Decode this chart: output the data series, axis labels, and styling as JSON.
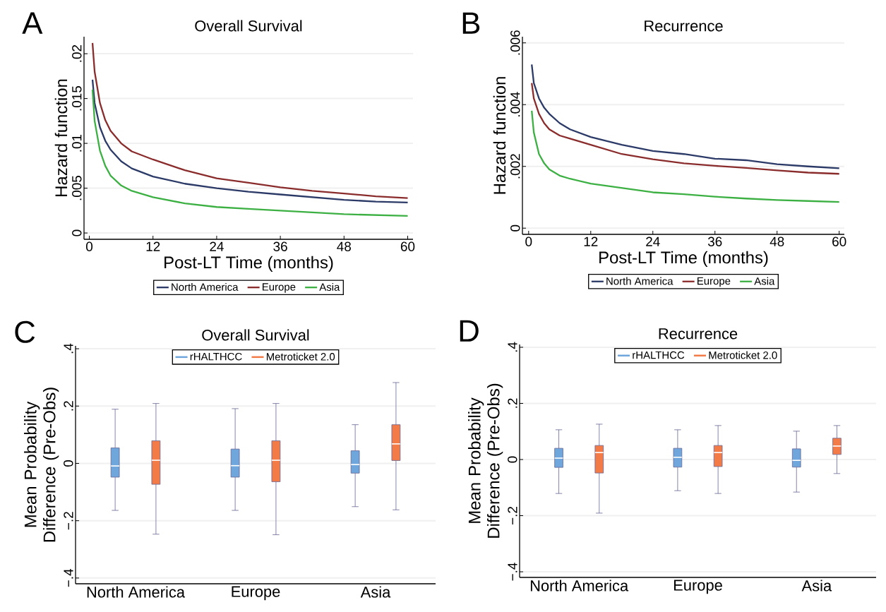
{
  "chart_data": [
    {
      "type": "line",
      "title": "Overall Survival",
      "xlabel": "Post-LT Time (months)",
      "ylabel": "Hazard function",
      "annotations": [
        "A"
      ],
      "x": [
        0.6,
        1,
        2,
        3,
        4,
        6,
        8,
        12,
        18,
        24,
        30,
        36,
        42,
        48,
        54,
        60
      ],
      "series": [
        {
          "name": "North America",
          "color": "#2b3a67",
          "values": [
            0.0171,
            0.0145,
            0.0118,
            0.0103,
            0.0093,
            0.008,
            0.0072,
            0.0063,
            0.0055,
            0.005,
            0.0046,
            0.0043,
            0.004,
            0.0037,
            0.0035,
            0.0034
          ]
        },
        {
          "name": "Europe",
          "color": "#8b2c2c",
          "values": [
            0.0212,
            0.018,
            0.0145,
            0.0126,
            0.0114,
            0.01,
            0.0091,
            0.0082,
            0.007,
            0.0061,
            0.0056,
            0.0051,
            0.0047,
            0.0044,
            0.0041,
            0.0039
          ]
        },
        {
          "name": "Asia",
          "color": "#3cb043",
          "values": [
            0.016,
            0.0125,
            0.0092,
            0.0075,
            0.0064,
            0.0053,
            0.0047,
            0.004,
            0.0033,
            0.0029,
            0.0027,
            0.0025,
            0.0023,
            0.0021,
            0.002,
            0.0019
          ]
        }
      ],
      "xlim": [
        -1,
        61
      ],
      "ylim": [
        -0.0007,
        0.0219
      ],
      "xticks": [
        0,
        12,
        24,
        36,
        48,
        60
      ],
      "yticks": [
        0,
        {
          "value": 0.005,
          "label": ".005"
        },
        {
          "value": 0.01,
          "label": ".01"
        },
        {
          "value": 0.015,
          "label": ".015"
        },
        {
          "value": 0.02,
          "label": ".02"
        }
      ],
      "grid": "y",
      "legend": "bottom"
    },
    {
      "type": "line",
      "title": "Recurrence",
      "xlabel": "Post-LT Time (months)",
      "ylabel": "Hazard function",
      "annotations": [
        "B"
      ],
      "x": [
        0.6,
        1,
        2,
        3,
        4,
        6,
        8,
        12,
        18,
        24,
        30,
        36,
        42,
        48,
        54,
        60
      ],
      "series": [
        {
          "name": "North America",
          "color": "#2b3a67",
          "values": [
            0.0053,
            0.0047,
            0.0042,
            0.0039,
            0.0037,
            0.0034,
            0.0032,
            0.00295,
            0.0027,
            0.0025,
            0.0024,
            0.00225,
            0.0022,
            0.00207,
            0.002,
            0.00194
          ]
        },
        {
          "name": "Europe",
          "color": "#8b2c2c",
          "values": [
            0.0047,
            0.0042,
            0.0037,
            0.0034,
            0.0032,
            0.003,
            0.0029,
            0.0027,
            0.0024,
            0.00223,
            0.0021,
            0.00202,
            0.00195,
            0.00187,
            0.0018,
            0.00176
          ]
        },
        {
          "name": "Asia",
          "color": "#3cb043",
          "values": [
            0.0038,
            0.0031,
            0.0024,
            0.0021,
            0.0019,
            0.0017,
            0.0016,
            0.00144,
            0.0013,
            0.00116,
            0.0011,
            0.00102,
            0.00096,
            0.00091,
            0.00088,
            0.00085
          ]
        }
      ],
      "xlim": [
        -1.2,
        61
      ],
      "ylim": [
        -0.0002,
        0.0062
      ],
      "xticks": [
        0,
        12,
        24,
        36,
        48,
        60
      ],
      "yticks": [
        0,
        {
          "value": 0.002,
          "label": ".002"
        },
        {
          "value": 0.004,
          "label": ".004"
        },
        {
          "value": 0.006,
          "label": ".006"
        }
      ],
      "grid": "y",
      "legend": "bottom"
    },
    {
      "type": "box",
      "title": "Overall Survival",
      "ylabel": "Mean Probability Difference (Pre-Obs)",
      "annotations": [
        "C"
      ],
      "categories": [
        "North America",
        "Europe",
        "Asia"
      ],
      "series": [
        {
          "name": "rHALTHCC",
          "color": "#6fa6dc",
          "boxes": [
            {
              "low": -0.164,
              "q1": -0.048,
              "median": -0.009,
              "q3": 0.054,
              "high": 0.189
            },
            {
              "low": -0.164,
              "q1": -0.048,
              "median": -0.008,
              "q3": 0.05,
              "high": 0.191
            },
            {
              "low": -0.151,
              "q1": -0.034,
              "median": -0.004,
              "q3": 0.044,
              "high": 0.135
            }
          ]
        },
        {
          "name": "Metroticket 2.0",
          "color": "#f37b48",
          "boxes": [
            {
              "low": -0.247,
              "q1": -0.073,
              "median": 0.011,
              "q3": 0.079,
              "high": 0.209
            },
            {
              "low": -0.249,
              "q1": -0.064,
              "median": 0.011,
              "q3": 0.079,
              "high": 0.209
            },
            {
              "low": -0.162,
              "q1": 0.01,
              "median": 0.068,
              "q3": 0.135,
              "high": 0.282
            }
          ]
        }
      ],
      "ylim": [
        -0.42,
        0.41
      ],
      "yticks": [
        {
          "value": -0.4,
          "label": "−.4"
        },
        {
          "value": -0.2,
          "label": "−.2"
        },
        0,
        {
          "value": 0.2,
          "label": ".2"
        },
        {
          "value": 0.4,
          "label": ".4"
        }
      ],
      "grid": "y",
      "legend": "top"
    },
    {
      "type": "box",
      "title": "Recurrence",
      "ylabel": "Mean Probability Difference (Pre-Obs)",
      "annotations": [
        "D"
      ],
      "categories": [
        "North America",
        "Europe",
        "Asia"
      ],
      "series": [
        {
          "name": "rHALTHCC",
          "color": "#6fa6dc",
          "boxes": [
            {
              "low": -0.121,
              "q1": -0.028,
              "median": 0.005,
              "q3": 0.04,
              "high": 0.106
            },
            {
              "low": -0.111,
              "q1": -0.027,
              "median": 0.008,
              "q3": 0.04,
              "high": 0.106
            },
            {
              "low": -0.116,
              "q1": -0.027,
              "median": -0.003,
              "q3": 0.038,
              "high": 0.101
            }
          ]
        },
        {
          "name": "Metroticket 2.0",
          "color": "#f37b48",
          "boxes": [
            {
              "low": -0.191,
              "q1": -0.048,
              "median": 0.025,
              "q3": 0.05,
              "high": 0.126
            },
            {
              "low": -0.121,
              "q1": -0.025,
              "median": 0.025,
              "q3": 0.05,
              "high": 0.121
            },
            {
              "low": -0.05,
              "q1": 0.018,
              "median": 0.048,
              "q3": 0.076,
              "high": 0.121
            }
          ]
        }
      ],
      "ylim": [
        -0.42,
        0.41
      ],
      "yticks": [
        {
          "value": -0.4,
          "label": "−.4"
        },
        {
          "value": -0.2,
          "label": "−.2"
        },
        0,
        {
          "value": 0.2,
          "label": ".2"
        },
        {
          "value": 0.4,
          "label": ".4"
        }
      ],
      "grid": "y",
      "legend": "top"
    }
  ]
}
